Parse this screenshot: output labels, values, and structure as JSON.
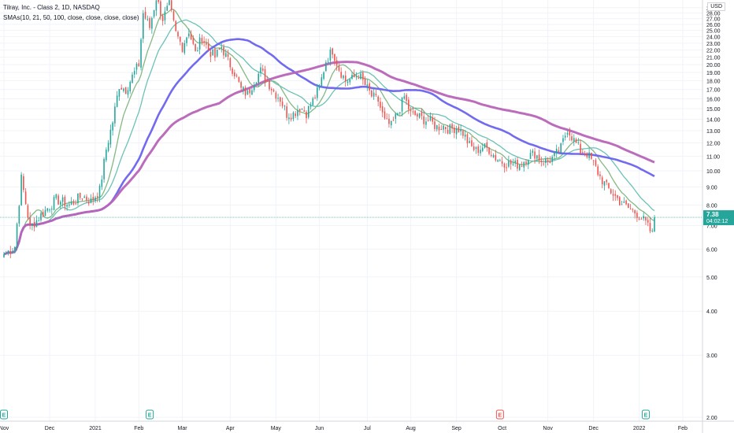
{
  "legend": {
    "title": "Tilray, Inc. - Class 2, 1D, NASDAQ",
    "indicator": "SMAs(10, 21, 50, 100, close, close, close, close)"
  },
  "currency": "USD",
  "colors": {
    "up": "#26a69a",
    "down": "#ef5350",
    "sma10": "#7cb57c",
    "sma21": "#63bfb1",
    "sma50": "#6a63ee",
    "sma100": "#b765b8",
    "last_price_bg": "#26a69a",
    "earnings_green": "#26a69a",
    "earnings_red": "#ef5350"
  },
  "last_price": {
    "price": "7.38",
    "countdown": "04:02:12"
  },
  "earnings_markers": [
    {
      "label": "E",
      "date_index": 0,
      "color": "green"
    },
    {
      "label": "E",
      "date_index": 67,
      "color": "green"
    },
    {
      "label": "E",
      "date_index": 228,
      "color": "red"
    },
    {
      "label": "E",
      "date_index": 295,
      "color": "green"
    }
  ],
  "chart_data": {
    "type": "candlestick",
    "title": "Tilray, Inc. - Class 2, 1D, NASDAQ",
    "y_axis": {
      "scale": "log",
      "ticks": [
        "2.00",
        "3.00",
        "4.00",
        "5.00",
        "6.00",
        "7.00",
        "8.00",
        "9.00",
        "10.00",
        "11.00",
        "12.00",
        "13.00",
        "14.00",
        "15.00",
        "16.00",
        "17.00",
        "18.00",
        "19.00",
        "20.00",
        "21.00",
        "22.00",
        "23.00",
        "24.00",
        "25.00",
        "26.00",
        "27.00",
        "28.00",
        "29.00"
      ],
      "range": [
        1.95,
        30.5
      ]
    },
    "x_axis": {
      "ticks": [
        {
          "label": "Nov",
          "index": 0
        },
        {
          "label": "Dec",
          "index": 21
        },
        {
          "label": "2021",
          "index": 42
        },
        {
          "label": "Feb",
          "index": 62
        },
        {
          "label": "Mar",
          "index": 82
        },
        {
          "label": "Apr",
          "index": 104
        },
        {
          "label": "May",
          "index": 125
        },
        {
          "label": "Jun",
          "index": 145
        },
        {
          "label": "Jul",
          "index": 167
        },
        {
          "label": "Aug",
          "index": 187
        },
        {
          "label": "Sep",
          "index": 208
        },
        {
          "label": "Oct",
          "index": 229
        },
        {
          "label": "Nov",
          "index": 250
        },
        {
          "label": "Dec",
          "index": 271
        },
        {
          "label": "2022",
          "index": 292
        },
        {
          "label": "Feb",
          "index": 312
        }
      ]
    },
    "series_anchor_closes": [
      [
        0,
        5.8
      ],
      [
        5,
        6.1
      ],
      [
        8,
        9.5
      ],
      [
        12,
        6.9
      ],
      [
        18,
        7.6
      ],
      [
        24,
        8.3
      ],
      [
        30,
        8.0
      ],
      [
        36,
        8.5
      ],
      [
        40,
        8.2
      ],
      [
        44,
        8.8
      ],
      [
        47,
        11.5
      ],
      [
        50,
        13.8
      ],
      [
        53,
        17.5
      ],
      [
        56,
        17.0
      ],
      [
        59,
        18.5
      ],
      [
        62,
        20.0
      ],
      [
        64,
        28.0
      ],
      [
        67,
        25.5
      ],
      [
        70,
        31.0
      ],
      [
        73,
        27.0
      ],
      [
        76,
        29.5
      ],
      [
        79,
        24.5
      ],
      [
        82,
        22.5
      ],
      [
        85,
        25.0
      ],
      [
        88,
        21.5
      ],
      [
        91,
        24.0
      ],
      [
        94,
        22.0
      ],
      [
        97,
        21.0
      ],
      [
        100,
        22.5
      ],
      [
        103,
        20.5
      ],
      [
        106,
        19.0
      ],
      [
        109,
        17.0
      ],
      [
        112,
        16.5
      ],
      [
        115,
        18.0
      ],
      [
        118,
        19.2
      ],
      [
        121,
        18.0
      ],
      [
        124,
        16.8
      ],
      [
        127,
        16.0
      ],
      [
        130,
        14.5
      ],
      [
        133,
        14.5
      ],
      [
        136,
        15.2
      ],
      [
        139,
        14.6
      ],
      [
        142,
        15.8
      ],
      [
        145,
        17.2
      ],
      [
        148,
        20.5
      ],
      [
        151,
        22.0
      ],
      [
        154,
        19.5
      ],
      [
        157,
        18.0
      ],
      [
        160,
        18.2
      ],
      [
        163,
        18.8
      ],
      [
        166,
        17.5
      ],
      [
        169,
        16.3
      ],
      [
        172,
        15.8
      ],
      [
        175,
        13.8
      ],
      [
        178,
        13.4
      ],
      [
        181,
        14.6
      ],
      [
        184,
        16.2
      ],
      [
        187,
        14.5
      ],
      [
        190,
        14.3
      ],
      [
        193,
        14.0
      ],
      [
        196,
        13.8
      ],
      [
        199,
        13.3
      ],
      [
        202,
        13.4
      ],
      [
        205,
        13.1
      ],
      [
        208,
        13.3
      ],
      [
        211,
        12.8
      ],
      [
        214,
        11.8
      ],
      [
        217,
        11.4
      ],
      [
        220,
        11.7
      ],
      [
        223,
        11.5
      ],
      [
        226,
        10.9
      ],
      [
        229,
        10.6
      ],
      [
        232,
        10.5
      ],
      [
        235,
        10.4
      ],
      [
        238,
        10.5
      ],
      [
        241,
        11.0
      ],
      [
        244,
        11.2
      ],
      [
        247,
        10.7
      ],
      [
        250,
        10.6
      ],
      [
        253,
        11.0
      ],
      [
        256,
        11.6
      ],
      [
        259,
        13.2
      ],
      [
        262,
        12.2
      ],
      [
        265,
        11.4
      ],
      [
        268,
        11.2
      ],
      [
        271,
        10.5
      ],
      [
        274,
        9.6
      ],
      [
        277,
        9.0
      ],
      [
        280,
        8.6
      ],
      [
        283,
        8.2
      ],
      [
        286,
        7.9
      ],
      [
        289,
        7.7
      ],
      [
        292,
        7.5
      ],
      [
        295,
        7.1
      ],
      [
        298,
        6.6
      ],
      [
        299,
        7.38
      ]
    ],
    "sma_series": [
      {
        "name": "SMA 10",
        "period": 10
      },
      {
        "name": "SMA 21",
        "period": 21
      },
      {
        "name": "SMA 50",
        "period": 50
      },
      {
        "name": "SMA 100",
        "period": 100
      }
    ],
    "last_close": 7.38
  }
}
